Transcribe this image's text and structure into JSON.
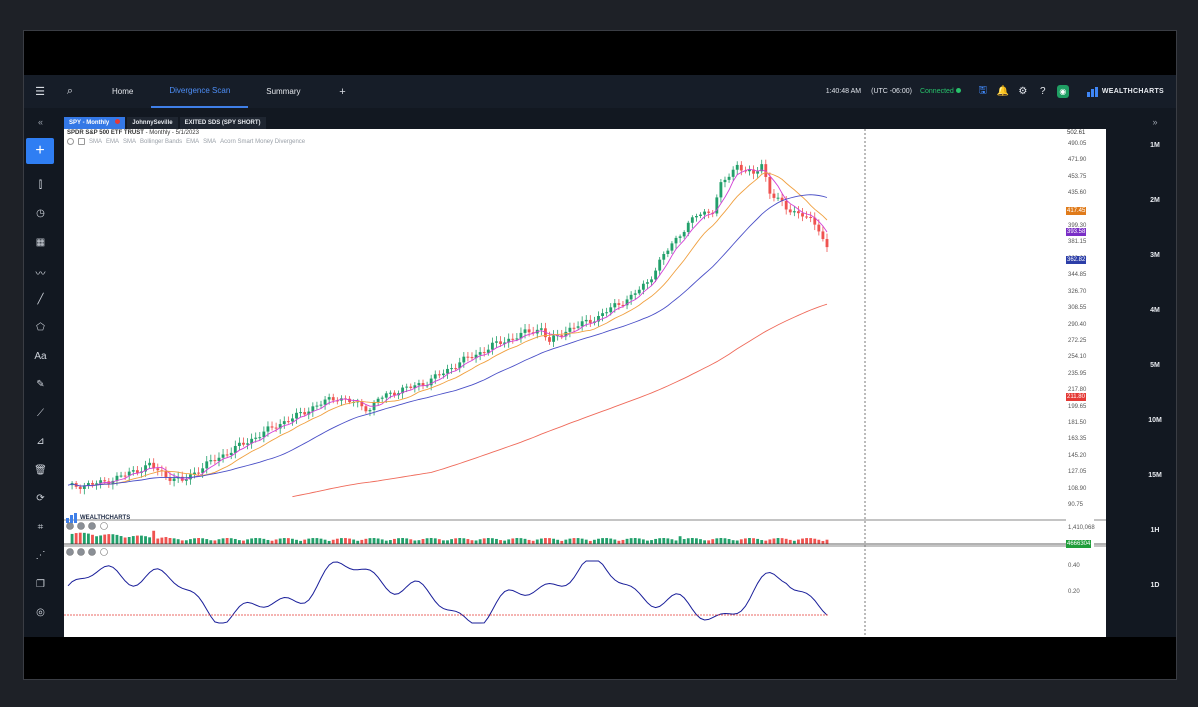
{
  "topbar": {
    "menu_icon": "hamburger-icon",
    "search_icon": "search-icon",
    "tabs": [
      {
        "label": "Home",
        "active": false
      },
      {
        "label": "Divergence Scan",
        "active": true
      },
      {
        "label": "Summary",
        "active": false
      }
    ],
    "add_tab_icon": "plus-icon",
    "time": "1:40:48 AM",
    "timezone": "(UTC -06:00)",
    "connection_status": "Connected",
    "icons": [
      "save-icon",
      "alert-icon",
      "gear-icon",
      "help-icon",
      "idea-icon"
    ],
    "brand": "WEALTHCHARTS"
  },
  "left_toolbar": {
    "collapse_label": "«",
    "add_label": "+",
    "tools": [
      "indicator-icon",
      "clock-icon",
      "calendar-icon",
      "trend-icon",
      "line-icon",
      "shape-icon",
      "text-icon",
      "pencil-icon",
      "ruler-icon",
      "measure-icon",
      "trash-icon",
      "refresh-icon",
      "chart-icon",
      "scatter-icon",
      "copy-icon",
      "target-icon"
    ],
    "text_tool_label": "Aa"
  },
  "right_toolbar": {
    "collapse_label": "»",
    "timeframes": [
      "1M",
      "2M",
      "3M",
      "4M",
      "5M",
      "10M",
      "15M",
      "1H",
      "1D"
    ]
  },
  "chart_tabs": [
    {
      "label": "SPY - Monthly",
      "active": true
    },
    {
      "label": "JohnnySeville",
      "active": false
    },
    {
      "label": "EXITED SDS (SPY SHORT)",
      "active": false
    }
  ],
  "chart": {
    "symbol_title": "SPDR S&P 500 ETF TRUST",
    "subtitle": "- Monthly - 5/1/2023",
    "indicators": [
      "SMA",
      "EMA",
      "SMA",
      "Bollinger Bands",
      "EMA",
      "SMA",
      "Acorn Smart Money Divergence"
    ],
    "watermark": "WEALTHCHARTS",
    "price_axis": [
      "490.05",
      "471.90",
      "453.75",
      "435.60",
      "399.30",
      "381.15",
      "363.00",
      "344.85",
      "326.70",
      "308.55",
      "290.40",
      "272.25",
      "254.10",
      "235.95",
      "217.80",
      "199.65",
      "181.50",
      "163.35",
      "145.20",
      "127.05",
      "108.90",
      "90.75"
    ],
    "price_tags": [
      {
        "label": "502.61",
        "color": "#ffffff",
        "text": "#333333"
      },
      {
        "label": "417.45",
        "color": "#e07b1a",
        "text": "#ffffff"
      },
      {
        "label": "393.58",
        "color": "#7a2fc6",
        "text": "#ffffff"
      },
      {
        "label": "362.82",
        "color": "#2c3ea8",
        "text": "#ffffff"
      },
      {
        "label": "211.80",
        "color": "#e53935",
        "text": "#ffffff"
      }
    ],
    "volume_axis": [
      "1,410,068"
    ],
    "volume_tag": {
      "label": "4666304",
      "color": "#1f9e3a"
    },
    "osc_axis": [
      "0.40",
      "0.20"
    ],
    "colors": {
      "up": "#22a06b",
      "down": "#ef5350",
      "sma_fast": "#d33fd6",
      "ema": "#f0a040",
      "sma_slow": "#4a4fc7",
      "sma_long": "#ef6a5a",
      "osc": "#1a1f9a"
    }
  }
}
